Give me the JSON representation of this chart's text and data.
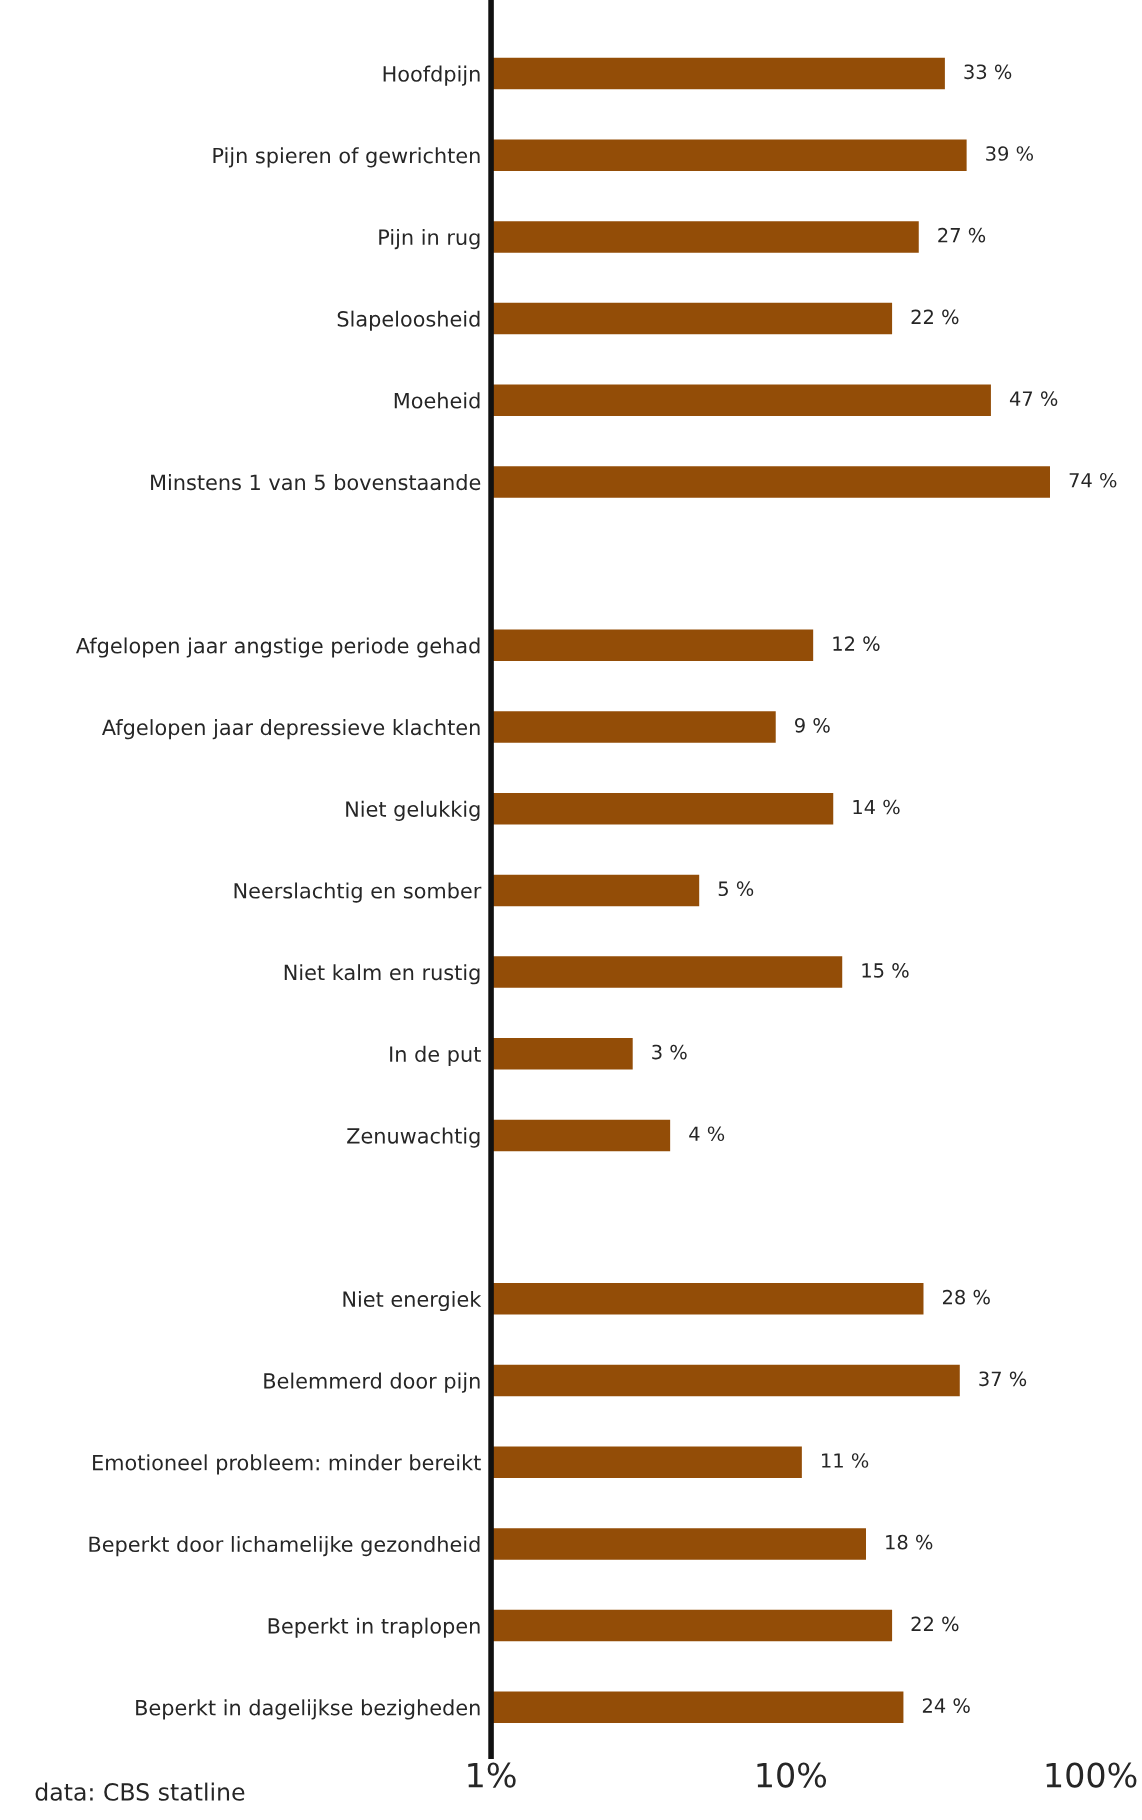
{
  "chart_data": {
    "type": "bar",
    "orientation": "horizontal",
    "log": "x",
    "categories": [
      "Hoofdpijn",
      "Pijn spieren of gewrichten",
      "Pijn in rug",
      "Slapeloosheid",
      "Moeheid",
      "Minstens 1 van 5 bovenstaande",
      null,
      "Afgelopen jaar angstige periode gehad",
      "Afgelopen jaar depressieve klachten",
      "Niet gelukkig",
      "Neerslachtig en somber",
      "Niet kalm en rustig",
      "In de put",
      "Zenuwachtig",
      null,
      "Niet energiek",
      "Belemmerd door pijn",
      "Emotioneel probleem: minder bereikt",
      "Beperkt door lichamelijke gezondheid",
      "Beperkt in traplopen",
      "Beperkt in dagelijkse bezigheden"
    ],
    "values": [
      33,
      39,
      27,
      22,
      47,
      74,
      null,
      12,
      9,
      14,
      5,
      15,
      3,
      4,
      null,
      28,
      37,
      11,
      18,
      22,
      24
    ],
    "value_labels": [
      "33 %",
      "39 %",
      "27 %",
      "22 %",
      "47 %",
      "74 %",
      null,
      "12 %",
      "9 %",
      "14 %",
      "5 %",
      "15 %",
      "3 %",
      "4 %",
      null,
      "28 %",
      "37 %",
      "11 %",
      "18 %",
      "22 %",
      "24 %"
    ],
    "color": "#934d07",
    "xlim": [
      1,
      100
    ],
    "xticks": [
      {
        "value": 1,
        "label": "1%"
      },
      {
        "value": 10,
        "label": "10%"
      },
      {
        "value": 100,
        "label": "100%"
      }
    ],
    "grid": false,
    "legend": false,
    "annotations": [
      "data: CBS statline"
    ]
  }
}
